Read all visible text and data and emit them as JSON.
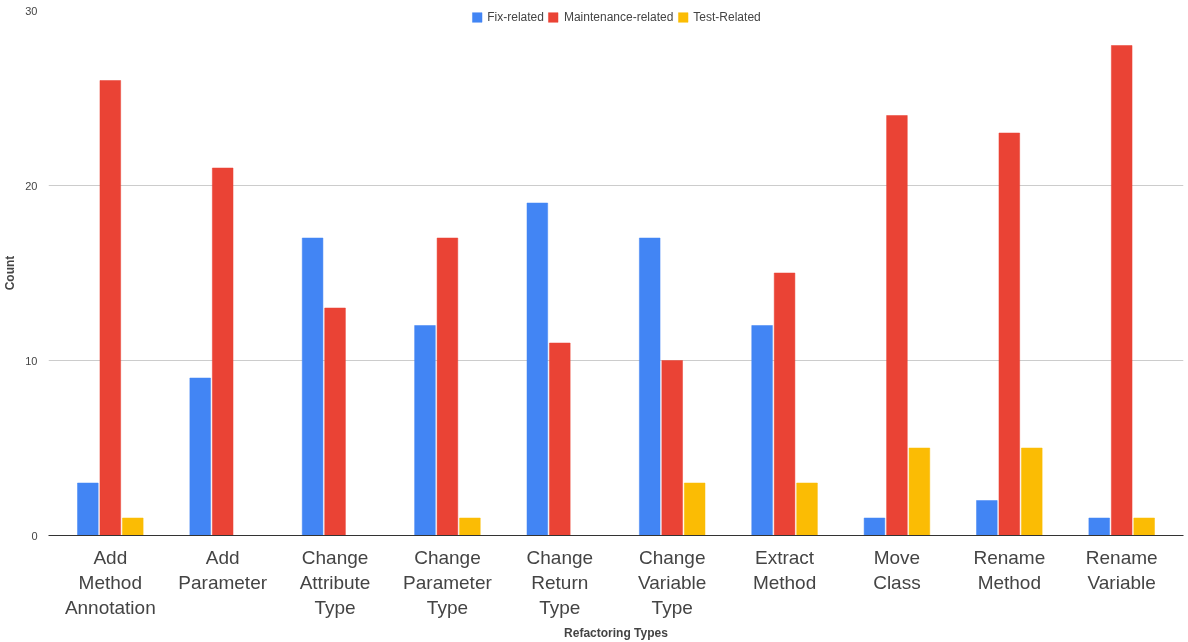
{
  "chart_data": {
    "type": "bar",
    "xlabel": "Refactoring Types",
    "ylabel": "Count",
    "categories": [
      "Add Method Annotation",
      "Add Parameter",
      "Change Attribute Type",
      "Change Parameter Type",
      "Change Return Type",
      "Change Variable Type",
      "Extract Method",
      "Move Class",
      "Rename Method",
      "Rename Variable"
    ],
    "series": [
      {
        "name": "Fix-related",
        "color": "#4285f4",
        "values": [
          3,
          9,
          17,
          12,
          19,
          17,
          12,
          1,
          2,
          1
        ]
      },
      {
        "name": "Maintenance-related",
        "color": "#ea4335",
        "values": [
          26,
          21,
          13,
          17,
          11,
          10,
          15,
          24,
          23,
          28
        ]
      },
      {
        "name": "Test-Related",
        "color": "#fbbc04",
        "values": [
          1,
          0,
          0,
          1,
          0,
          3,
          3,
          5,
          5,
          1
        ]
      }
    ],
    "ylim": [
      0,
      30
    ],
    "yticks": [
      0,
      10,
      20,
      30
    ],
    "grid": "y",
    "legend": "top"
  }
}
